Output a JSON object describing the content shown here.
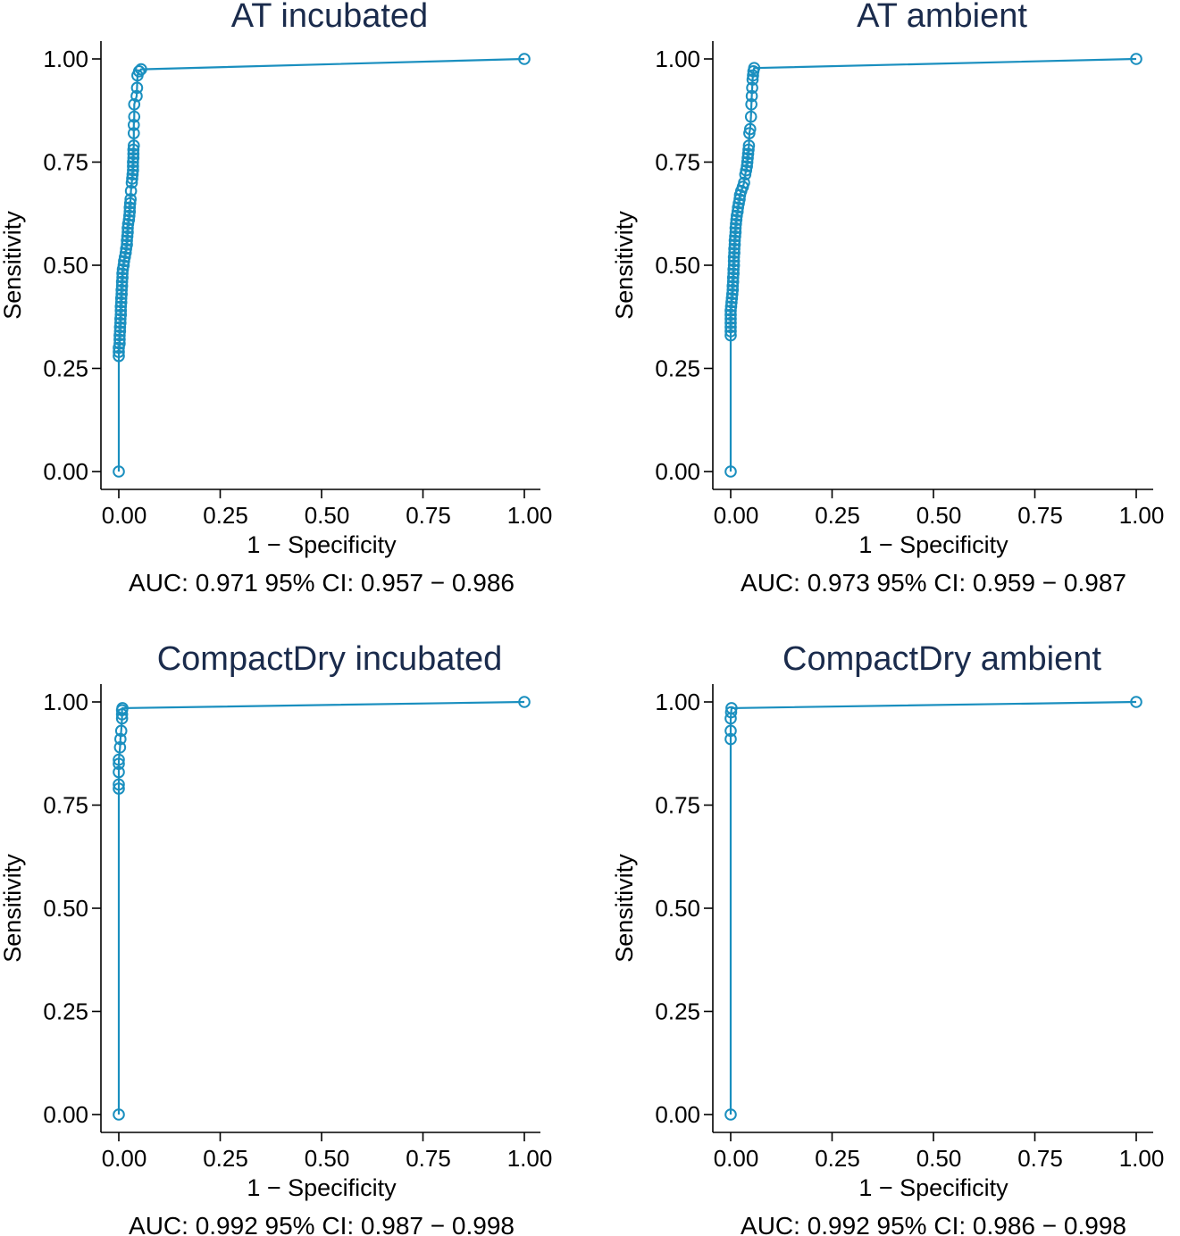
{
  "chart_data": [
    {
      "type": "line",
      "title": "AT incubated",
      "xlabel": "1 − Specificity",
      "ylabel": "Sensitivity",
      "xlim": [
        0,
        1
      ],
      "ylim": [
        0,
        1
      ],
      "xticks": [
        "0.00",
        "0.25",
        "0.50",
        "0.75",
        "1.00"
      ],
      "yticks": [
        "0.00",
        "0.25",
        "0.50",
        "0.75",
        "1.00"
      ],
      "auc_text": "AUC: 0.971  95% CI: 0.957 − 0.986",
      "color": "#1a8fbf",
      "series": [
        {
          "name": "ROC",
          "points": [
            [
              0,
              0
            ],
            [
              0,
              0.28
            ],
            [
              0,
              0.29
            ],
            [
              0,
              0.3
            ],
            [
              0.002,
              0.31
            ],
            [
              0.002,
              0.32
            ],
            [
              0.002,
              0.33
            ],
            [
              0.003,
              0.34
            ],
            [
              0.003,
              0.35
            ],
            [
              0.004,
              0.36
            ],
            [
              0.004,
              0.37
            ],
            [
              0.005,
              0.38
            ],
            [
              0.005,
              0.39
            ],
            [
              0.005,
              0.4
            ],
            [
              0.006,
              0.41
            ],
            [
              0.006,
              0.42
            ],
            [
              0.007,
              0.43
            ],
            [
              0.007,
              0.44
            ],
            [
              0.008,
              0.45
            ],
            [
              0.008,
              0.46
            ],
            [
              0.009,
              0.47
            ],
            [
              0.009,
              0.48
            ],
            [
              0.01,
              0.49
            ],
            [
              0.012,
              0.5
            ],
            [
              0.013,
              0.51
            ],
            [
              0.015,
              0.52
            ],
            [
              0.017,
              0.53
            ],
            [
              0.018,
              0.54
            ],
            [
              0.02,
              0.55
            ],
            [
              0.02,
              0.56
            ],
            [
              0.021,
              0.57
            ],
            [
              0.022,
              0.58
            ],
            [
              0.022,
              0.59
            ],
            [
              0.023,
              0.6
            ],
            [
              0.025,
              0.61
            ],
            [
              0.026,
              0.62
            ],
            [
              0.027,
              0.63
            ],
            [
              0.027,
              0.64
            ],
            [
              0.028,
              0.65
            ],
            [
              0.029,
              0.66
            ],
            [
              0.03,
              0.68
            ],
            [
              0.032,
              0.7
            ],
            [
              0.033,
              0.71
            ],
            [
              0.034,
              0.72
            ],
            [
              0.035,
              0.73
            ],
            [
              0.035,
              0.74
            ],
            [
              0.035,
              0.75
            ],
            [
              0.036,
              0.76
            ],
            [
              0.036,
              0.77
            ],
            [
              0.036,
              0.78
            ],
            [
              0.037,
              0.79
            ],
            [
              0.037,
              0.82
            ],
            [
              0.037,
              0.84
            ],
            [
              0.038,
              0.86
            ],
            [
              0.038,
              0.89
            ],
            [
              0.044,
              0.91
            ],
            [
              0.045,
              0.93
            ],
            [
              0.046,
              0.96
            ],
            [
              0.05,
              0.97
            ],
            [
              0.055,
              0.975
            ],
            [
              1,
              1
            ]
          ]
        }
      ]
    },
    {
      "type": "line",
      "title": "AT ambient",
      "xlabel": "1 − Specificity",
      "ylabel": "Sensitivity",
      "xlim": [
        0,
        1
      ],
      "ylim": [
        0,
        1
      ],
      "xticks": [
        "0.00",
        "0.25",
        "0.50",
        "0.75",
        "1.00"
      ],
      "yticks": [
        "0.00",
        "0.25",
        "0.50",
        "0.75",
        "1.00"
      ],
      "auc_text": "AUC: 0.973  95% CI: 0.959 − 0.987",
      "color": "#1a8fbf",
      "series": [
        {
          "name": "ROC",
          "points": [
            [
              0,
              0
            ],
            [
              0,
              0.33
            ],
            [
              0,
              0.34
            ],
            [
              0,
              0.35
            ],
            [
              0,
              0.36
            ],
            [
              0,
              0.37
            ],
            [
              0,
              0.38
            ],
            [
              0,
              0.39
            ],
            [
              0.001,
              0.4
            ],
            [
              0.002,
              0.41
            ],
            [
              0.003,
              0.42
            ],
            [
              0.004,
              0.43
            ],
            [
              0.005,
              0.44
            ],
            [
              0.005,
              0.45
            ],
            [
              0.006,
              0.46
            ],
            [
              0.006,
              0.47
            ],
            [
              0.007,
              0.48
            ],
            [
              0.007,
              0.49
            ],
            [
              0.008,
              0.5
            ],
            [
              0.008,
              0.51
            ],
            [
              0.008,
              0.52
            ],
            [
              0.009,
              0.53
            ],
            [
              0.009,
              0.54
            ],
            [
              0.01,
              0.55
            ],
            [
              0.01,
              0.56
            ],
            [
              0.011,
              0.57
            ],
            [
              0.012,
              0.58
            ],
            [
              0.012,
              0.59
            ],
            [
              0.013,
              0.6
            ],
            [
              0.014,
              0.61
            ],
            [
              0.015,
              0.62
            ],
            [
              0.017,
              0.63
            ],
            [
              0.018,
              0.64
            ],
            [
              0.02,
              0.65
            ],
            [
              0.022,
              0.66
            ],
            [
              0.023,
              0.67
            ],
            [
              0.026,
              0.68
            ],
            [
              0.03,
              0.69
            ],
            [
              0.033,
              0.7
            ],
            [
              0.036,
              0.72
            ],
            [
              0.038,
              0.73
            ],
            [
              0.04,
              0.74
            ],
            [
              0.041,
              0.75
            ],
            [
              0.042,
              0.76
            ],
            [
              0.043,
              0.77
            ],
            [
              0.044,
              0.78
            ],
            [
              0.045,
              0.79
            ],
            [
              0.046,
              0.82
            ],
            [
              0.048,
              0.83
            ],
            [
              0.05,
              0.86
            ],
            [
              0.051,
              0.89
            ],
            [
              0.052,
              0.91
            ],
            [
              0.053,
              0.93
            ],
            [
              0.054,
              0.95
            ],
            [
              0.055,
              0.96
            ],
            [
              0.056,
              0.97
            ],
            [
              0.058,
              0.978
            ],
            [
              1,
              1
            ]
          ]
        }
      ]
    },
    {
      "type": "line",
      "title": "CompactDry incubated",
      "xlabel": "1 − Specificity",
      "ylabel": "Sensitivity",
      "xlim": [
        0,
        1
      ],
      "ylim": [
        0,
        1
      ],
      "xticks": [
        "0.00",
        "0.25",
        "0.50",
        "0.75",
        "1.00"
      ],
      "yticks": [
        "0.00",
        "0.25",
        "0.50",
        "0.75",
        "1.00"
      ],
      "auc_text": "AUC: 0.992  95% CI: 0.987 − 0.998",
      "color": "#1a8fbf",
      "series": [
        {
          "name": "ROC",
          "points": [
            [
              0,
              0
            ],
            [
              0,
              0.79
            ],
            [
              0,
              0.8
            ],
            [
              0,
              0.83
            ],
            [
              0,
              0.85
            ],
            [
              0,
              0.86
            ],
            [
              0.003,
              0.89
            ],
            [
              0.004,
              0.91
            ],
            [
              0.006,
              0.93
            ],
            [
              0.008,
              0.96
            ],
            [
              0.008,
              0.97
            ],
            [
              0.008,
              0.98
            ],
            [
              0.009,
              0.985
            ],
            [
              1,
              1
            ]
          ]
        }
      ]
    },
    {
      "type": "line",
      "title": "CompactDry ambient",
      "xlabel": "1 − Specificity",
      "ylabel": "Sensitivity",
      "xlim": [
        0,
        1
      ],
      "ylim": [
        0,
        1
      ],
      "xticks": [
        "0.00",
        "0.25",
        "0.50",
        "0.75",
        "1.00"
      ],
      "yticks": [
        "0.00",
        "0.25",
        "0.50",
        "0.75",
        "1.00"
      ],
      "auc_text": "AUC: 0.992  95% CI: 0.986 − 0.998",
      "color": "#1a8fbf",
      "series": [
        {
          "name": "ROC",
          "points": [
            [
              0,
              0
            ],
            [
              0,
              0.91
            ],
            [
              0,
              0.93
            ],
            [
              0,
              0.96
            ],
            [
              0.001,
              0.975
            ],
            [
              0.002,
              0.985
            ],
            [
              1,
              1
            ]
          ]
        }
      ]
    }
  ]
}
